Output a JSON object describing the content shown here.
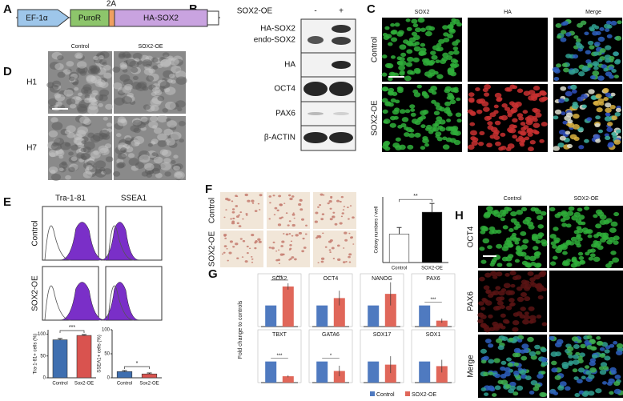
{
  "panels": [
    "A",
    "B",
    "C",
    "D",
    "E",
    "F",
    "G",
    "H"
  ],
  "construct": {
    "promoter": "EF-1α",
    "marker": "PuroR",
    "linker": "2A",
    "gene": "HA-SOX2"
  },
  "western": {
    "condition": "SOX2-OE",
    "lanes": [
      "-",
      "+"
    ],
    "rows": [
      "HA-SOX2",
      "endo-SOX2",
      "HA",
      "OCT4",
      "PAX6",
      "β-ACTIN"
    ]
  },
  "stain_c": {
    "columns": [
      "SOX2",
      "HA",
      "Merge"
    ],
    "rows": [
      "Control",
      "SOX2-OE"
    ]
  },
  "phase_d": {
    "columns": [
      "Control",
      "SOX2-OE"
    ],
    "rows": [
      "H1",
      "H7"
    ]
  },
  "flow_e": {
    "columns": [
      "Tra-1-81",
      "SSEA1"
    ],
    "rows": [
      "Control",
      "SOX2-OE"
    ]
  },
  "colony_f": {
    "rows": [
      "Control",
      "SOX2-OE"
    ]
  },
  "stain_h": {
    "columns": [
      "Control",
      "SOX2-OE"
    ],
    "rows": [
      "OCT4",
      "PAX6",
      "Merge"
    ]
  },
  "chart_data": [
    {
      "type": "bar",
      "ylabel": "Tra-1-81+ cells (%)",
      "categories": [
        "Control",
        "Sox2-OE"
      ],
      "values": [
        87,
        97
      ],
      "errors": [
        3,
        2
      ],
      "colors": [
        "#3f6fb0",
        "#d9534f"
      ],
      "ylim": [
        0,
        110
      ],
      "yticks": [
        0,
        50,
        100
      ],
      "annotation": "***"
    },
    {
      "type": "bar",
      "ylabel": "SSEA1+ cells (%)",
      "categories": [
        "Control",
        "Sox2-OE"
      ],
      "values": [
        13,
        8
      ],
      "errors": [
        2,
        2
      ],
      "colors": [
        "#3f6fb0",
        "#d9534f"
      ],
      "ylim": [
        0,
        100
      ],
      "yticks": [
        0,
        50,
        100
      ],
      "annotation": "*"
    },
    {
      "type": "bar",
      "ylabel": "Colony numbers / well",
      "categories": [
        "Control",
        "SOX2-OE"
      ],
      "values": [
        65,
        115
      ],
      "errors": [
        15,
        20
      ],
      "colors": [
        "#ffffff",
        "#000000"
      ],
      "ylim": [
        0,
        150
      ],
      "annotation": "**"
    },
    {
      "type": "grouped-bar",
      "ylabel": "Fold change to controls",
      "categories": [
        "SOX2",
        "OCT4",
        "NANOG",
        "PAX6",
        "TBXT",
        "GATA6",
        "SOX17",
        "SOX1"
      ],
      "ylim": [
        0,
        2.2
      ],
      "series": [
        {
          "name": "Control",
          "color": "#4f7ac0",
          "values": [
            1,
            1,
            1,
            1,
            1,
            1,
            1,
            1
          ],
          "errors": [
            0,
            0,
            0,
            0,
            0,
            0,
            0,
            0
          ]
        },
        {
          "name": "SOX2-OE",
          "color": "#e0675a",
          "values": [
            1.9,
            1.35,
            1.55,
            0.28,
            0.3,
            0.55,
            0.85,
            0.78
          ],
          "errors": [
            0.15,
            0.35,
            0.55,
            0.1,
            0.05,
            0.25,
            0.4,
            0.3
          ]
        }
      ],
      "annotations": [
        "***",
        null,
        null,
        "***",
        "***",
        "*",
        null,
        null
      ]
    }
  ]
}
